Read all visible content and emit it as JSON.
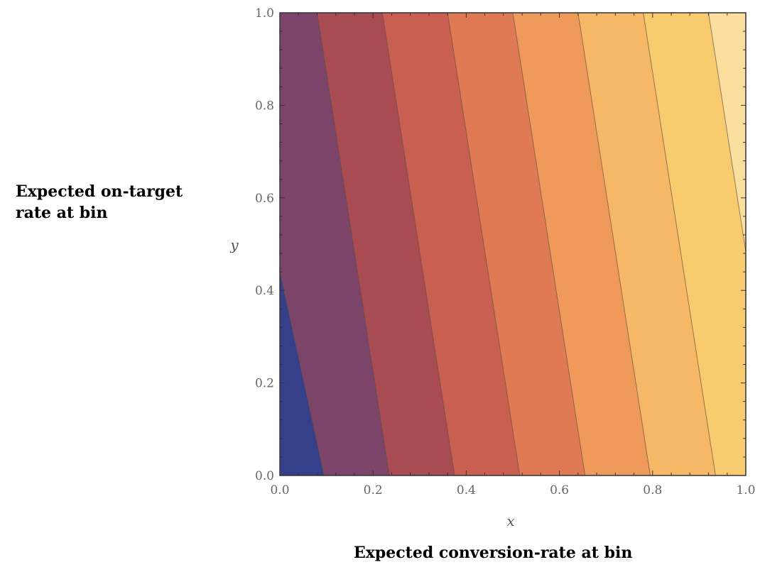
{
  "chart_data": {
    "type": "contour",
    "title": "",
    "xlabel": "x",
    "ylabel": "y",
    "xlim": [
      0.0,
      1.0
    ],
    "ylim": [
      0.0,
      1.0
    ],
    "xticks": [
      "0.0",
      "0.2",
      "0.4",
      "0.6",
      "0.8",
      "1.0"
    ],
    "yticks": [
      "0.0",
      "0.2",
      "0.4",
      "0.6",
      "0.8",
      "1.0"
    ],
    "grid": false,
    "contour_lines": [
      {
        "x_at_y0": 0.095,
        "x_at_y1": -0.12
      },
      {
        "x_at_y0": 0.235,
        "x_at_y1": 0.08
      },
      {
        "x_at_y0": 0.375,
        "x_at_y1": 0.22
      },
      {
        "x_at_y0": 0.515,
        "x_at_y1": 0.36
      },
      {
        "x_at_y0": 0.655,
        "x_at_y1": 0.5
      },
      {
        "x_at_y0": 0.795,
        "x_at_y1": 0.64
      },
      {
        "x_at_y0": 0.935,
        "x_at_y1": 0.78
      },
      {
        "x_at_y0": 1.075,
        "x_at_y1": 0.92
      }
    ],
    "level_colors": [
      "#353f8a",
      "#7c4468",
      "#a94b52",
      "#c95f50",
      "#e07a55",
      "#ef9a5a",
      "#f6b766",
      "#f8cb6e",
      "#fbdf9e",
      "#fff5cf"
    ]
  },
  "labels": {
    "y_description": "Expected on-target rate at bin",
    "x_description": "Expected conversion-rate at bin"
  },
  "colors": {
    "contour_line": "#5a4a3a",
    "axis": "#333333"
  }
}
